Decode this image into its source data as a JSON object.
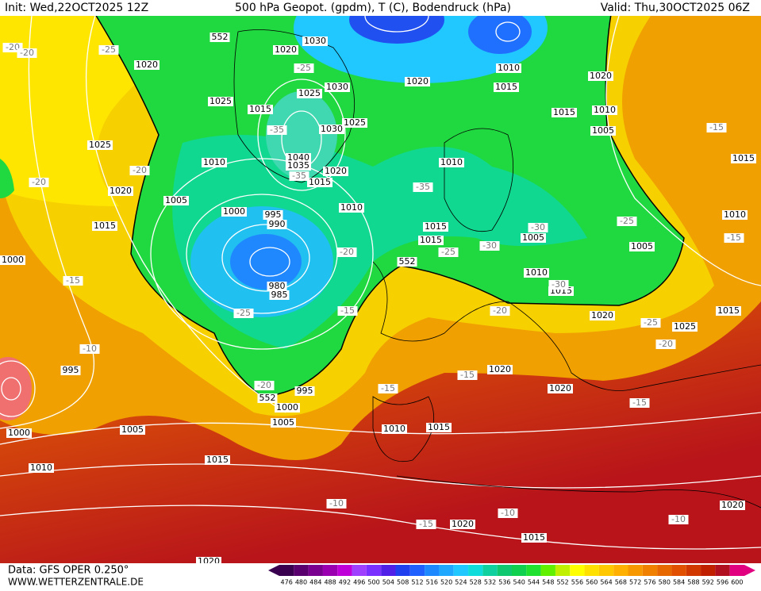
{
  "header": {
    "init": "Init: Wed,22OCT2025 12Z",
    "title": "500 hPa Geopot. (gpdm), T (C), Bodendruck (hPa)",
    "valid": "Valid: Thu,30OCT2025 06Z"
  },
  "footer": {
    "source": "Data: GFS OPER 0.250°",
    "site": "WWW.WETTERZENTRALE.DE"
  },
  "colorbar": {
    "ticks": [
      476,
      480,
      484,
      488,
      492,
      496,
      500,
      504,
      508,
      512,
      516,
      520,
      524,
      528,
      532,
      536,
      540,
      544,
      548,
      552,
      556,
      560,
      564,
      568,
      572,
      576,
      580,
      584,
      588,
      592,
      596,
      600
    ],
    "colors": [
      "#3a0050",
      "#5a006e",
      "#7a0090",
      "#9a00b0",
      "#c000d8",
      "#a040ff",
      "#7a30ff",
      "#5020e8",
      "#2040f0",
      "#2060ff",
      "#1e88ff",
      "#20a8ff",
      "#20c8ff",
      "#10dcdc",
      "#10d0a0",
      "#10c870",
      "#10d050",
      "#20e030",
      "#60f000",
      "#c0f000",
      "#ffff00",
      "#ffe000",
      "#ffc800",
      "#ffb000",
      "#f89800",
      "#f08000",
      "#e86800",
      "#e05000",
      "#d03800",
      "#c02000",
      "#b01020",
      "#e00080"
    ]
  },
  "map": {
    "isobar_labels": [
      "1030",
      "1020",
      "1020",
      "1025",
      "1015",
      "1025",
      "1030",
      "1030",
      "1025",
      "1040",
      "1035",
      "1020",
      "1015",
      "1010",
      "1025",
      "1020",
      "1005",
      "1000",
      "995",
      "990",
      "1010",
      "1015",
      "1000",
      "980",
      "985",
      "995",
      "995",
      "1000",
      "1005",
      "1005",
      "1000",
      "1010",
      "1015",
      "1010",
      "1015",
      "1020",
      "1020",
      "1025",
      "1020",
      "1015",
      "1010",
      "1015",
      "1005",
      "1005",
      "1010",
      "1015",
      "1010",
      "1005",
      "1015",
      "1020",
      "1015",
      "1010",
      "1020",
      "1010",
      "1015",
      "1015",
      "1020",
      "1015",
      "1020",
      "1020"
    ],
    "temperature_labels": [
      "-20",
      "-20",
      "-25",
      "-25",
      "-35",
      "-35",
      "-20",
      "-20",
      "-35",
      "-20",
      "-25",
      "-30",
      "-30",
      "-25",
      "-15",
      "-30",
      "-15",
      "-25",
      "-20",
      "-20",
      "-15",
      "-25",
      "-15",
      "-10",
      "-20",
      "-15",
      "-15",
      "-15",
      "-10",
      "-10",
      "-10",
      "-15"
    ],
    "height_labels": [
      "552",
      "552",
      "552"
    ]
  }
}
